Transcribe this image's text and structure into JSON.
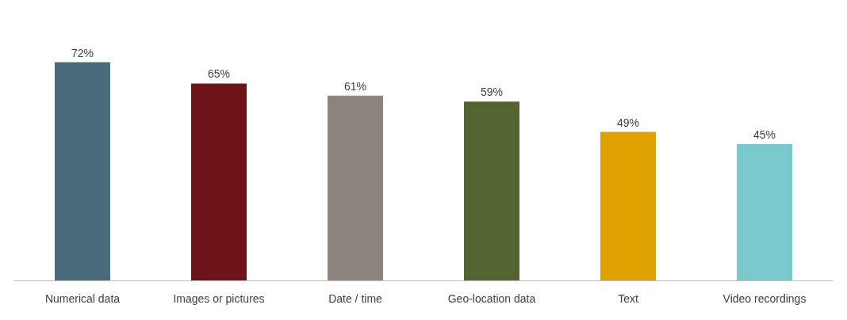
{
  "chart_data": {
    "type": "bar",
    "categories": [
      "Numerical data",
      "Images or pictures",
      "Date / time",
      "Geo-location data",
      "Text",
      "Video recordings"
    ],
    "values": [
      72,
      65,
      61,
      59,
      49,
      45
    ],
    "colors": [
      "#4a6b7b",
      "#6b1518",
      "#8c857d",
      "#546430",
      "#e0a200",
      "#79c9cc"
    ],
    "value_labels": [
      "72%",
      "65%",
      "61%",
      "59%",
      "49%",
      "45%"
    ]
  }
}
